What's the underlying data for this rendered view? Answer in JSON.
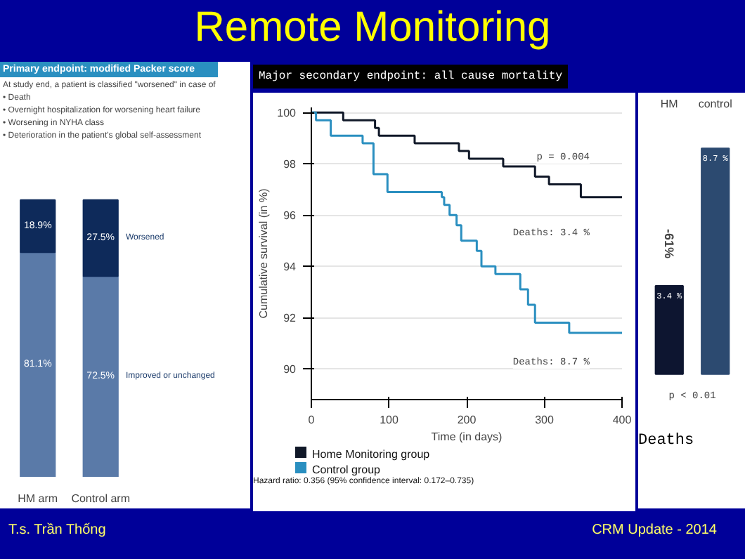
{
  "chart_data": [
    {
      "type": "bar",
      "stacked": true,
      "title": "Primary endpoint: modified Packer score",
      "subtitle": "At study end, a patient is classified \"worsened\" in case of",
      "annotations": [
        "• Death",
        "• Overnight hospitalization for worsening heart failure",
        "• Worsening in NYHA class",
        "• Deterioration in the patient's global self-assessment"
      ],
      "categories": [
        "HM arm",
        "Control arm"
      ],
      "series": [
        {
          "name": "Improved or unchanged",
          "color": "#5a7aa8",
          "values": [
            81.1,
            72.5
          ],
          "value_labels": [
            "81.1%",
            "72.5%"
          ]
        },
        {
          "name": "Worsened",
          "color": "#0e2a5a",
          "values": [
            18.9,
            27.5
          ],
          "value_labels": [
            "18.9%",
            "27.5%"
          ]
        }
      ]
    },
    {
      "type": "step",
      "title": "Remote Monitoring",
      "subtitle": "Major secondary endpoint: all cause mortality",
      "xlabel": "Time (in days)",
      "ylabel": "Cumulative survival (in %)",
      "xlim": [
        0,
        400
      ],
      "xticks": [
        0,
        100,
        200,
        300,
        400
      ],
      "ylim": [
        88.8,
        100.2
      ],
      "yticks": [
        90,
        92,
        94,
        96,
        98,
        100
      ],
      "grid": "y",
      "legend": "bottom",
      "annotations": [
        "0",
        "p = 0.004",
        "Deaths: 3.4 %",
        "Deaths: 8.7 %",
        "Hazard ratio: 0.356 (95% confidence interval: 0.172–0.735)",
        "T.s. Trần Thống",
        "CRM Update - 2014"
      ],
      "series": [
        {
          "name": "Home Monitoring group",
          "color": "#101828",
          "x": [
            0,
            41,
            82,
            87,
            133,
            190,
            203,
            247,
            288,
            306,
            347,
            400
          ],
          "values": [
            100,
            99.7,
            99.4,
            99.1,
            98.8,
            98.5,
            98.2,
            97.9,
            97.5,
            97.2,
            96.7,
            96.7
          ]
        },
        {
          "name": "Control group",
          "color": "#2a8fc0",
          "x": [
            0,
            6,
            25,
            66,
            80,
            98,
            168,
            171,
            178,
            187,
            193,
            213,
            219,
            237,
            269,
            279,
            288,
            332,
            400
          ],
          "values": [
            100,
            99.7,
            99.1,
            98.8,
            97.6,
            96.9,
            96.7,
            96.4,
            96.0,
            95.6,
            95.0,
            94.6,
            94.0,
            93.7,
            93.1,
            92.5,
            91.8,
            91.4,
            91.4
          ]
        }
      ]
    },
    {
      "type": "bar",
      "categories": [
        "HM",
        "control"
      ],
      "xlabel": "Deaths",
      "colors": [
        "#0d1530",
        "#2c4a70"
      ],
      "values": [
        3.4,
        8.7
      ],
      "value_labels": [
        "3.4 %",
        "8.7 %"
      ],
      "annotations": [
        "-61%",
        "p < 0.01"
      ]
    }
  ]
}
